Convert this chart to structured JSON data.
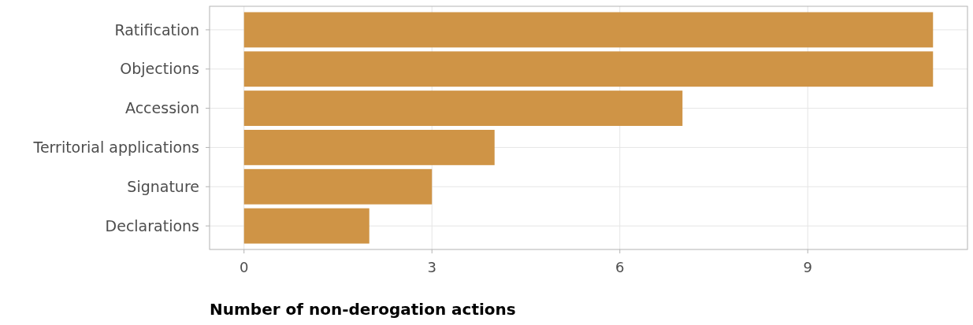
{
  "chart_data": {
    "type": "bar",
    "orientation": "horizontal",
    "categories": [
      "Ratification",
      "Objections",
      "Accession",
      "Territorial applications",
      "Signature",
      "Declarations"
    ],
    "values": [
      11,
      11,
      7,
      4,
      3,
      2
    ],
    "color": "#cf9446",
    "xlim": [
      -0.55,
      11.55
    ],
    "xticks": [
      0,
      3,
      6,
      9
    ],
    "grid": true,
    "xlabel": "Number of non-derogation actions"
  }
}
